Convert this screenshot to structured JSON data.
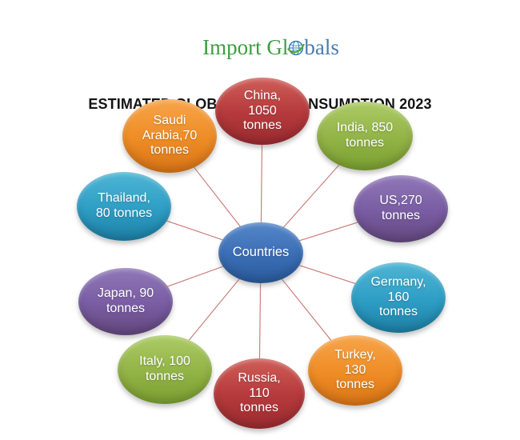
{
  "logo": {
    "part1": "Import Gl",
    "part2": "bals",
    "green": "#3a9e3f",
    "blue": "#4a7cae"
  },
  "title": "ESTIMATED GLOBAL GOLD CONSUMPTION 2023",
  "chart_data": {
    "type": "radial-diagram",
    "title": "ESTIMATED GLOBAL GOLD CONSUMPTION 2023",
    "unit": "tonnes",
    "center": {
      "id": "countries",
      "label": "Countries",
      "color_key": "blue"
    },
    "line_color": "#c9817d",
    "palette": {
      "blue": {
        "light": "#5586c7",
        "base": "#3b6fb6",
        "dark": "#2a5a9b"
      },
      "red": {
        "light": "#cf5e58",
        "base": "#b63a3c",
        "dark": "#9a2b30"
      },
      "green": {
        "light": "#accb66",
        "base": "#93b447",
        "dark": "#7b9f31"
      },
      "purple": {
        "light": "#9078b7",
        "base": "#7a5da4",
        "dark": "#63487e"
      },
      "teal": {
        "light": "#4fb5d4",
        "base": "#2f9fc6",
        "dark": "#1d7fa5"
      },
      "orange": {
        "light": "#f7a54b",
        "base": "#ef8d26",
        "dark": "#d97416"
      }
    },
    "nodes": [
      {
        "id": "china",
        "country": "China",
        "tonnes": 1050,
        "lines": [
          "China,",
          "1050",
          "tonnes"
        ],
        "color_key": "red"
      },
      {
        "id": "india",
        "country": "India",
        "tonnes": 850,
        "lines": [
          "India, 850",
          "tonnes"
        ],
        "color_key": "green"
      },
      {
        "id": "us",
        "country": "US",
        "tonnes": 270,
        "lines": [
          "US,270",
          "tonnes"
        ],
        "color_key": "purple"
      },
      {
        "id": "germany",
        "country": "Germany",
        "tonnes": 160,
        "lines": [
          "Germany,",
          "160",
          "tonnes"
        ],
        "color_key": "teal"
      },
      {
        "id": "turkey",
        "country": "Turkey",
        "tonnes": 130,
        "lines": [
          "Turkey,",
          "130",
          "tonnes"
        ],
        "color_key": "orange"
      },
      {
        "id": "russia",
        "country": "Russia",
        "tonnes": 110,
        "lines": [
          "Russia,",
          "110",
          "tonnes"
        ],
        "color_key": "red"
      },
      {
        "id": "italy",
        "country": "Italy",
        "tonnes": 100,
        "lines": [
          "Italy, 100",
          "tonnes"
        ],
        "color_key": "green"
      },
      {
        "id": "japan",
        "country": "Japan",
        "tonnes": 90,
        "lines": [
          "Japan, 90",
          "tonnes"
        ],
        "color_key": "purple"
      },
      {
        "id": "thailand",
        "country": "Thailand",
        "tonnes": 80,
        "lines": [
          "Thailand,",
          "80 tonnes"
        ],
        "color_key": "teal"
      },
      {
        "id": "saudi_arabia",
        "country": "Saudi Arabia",
        "tonnes": 70,
        "lines": [
          "Saudi",
          "Arabia,70",
          "tonnes"
        ],
        "color_key": "orange"
      }
    ]
  }
}
